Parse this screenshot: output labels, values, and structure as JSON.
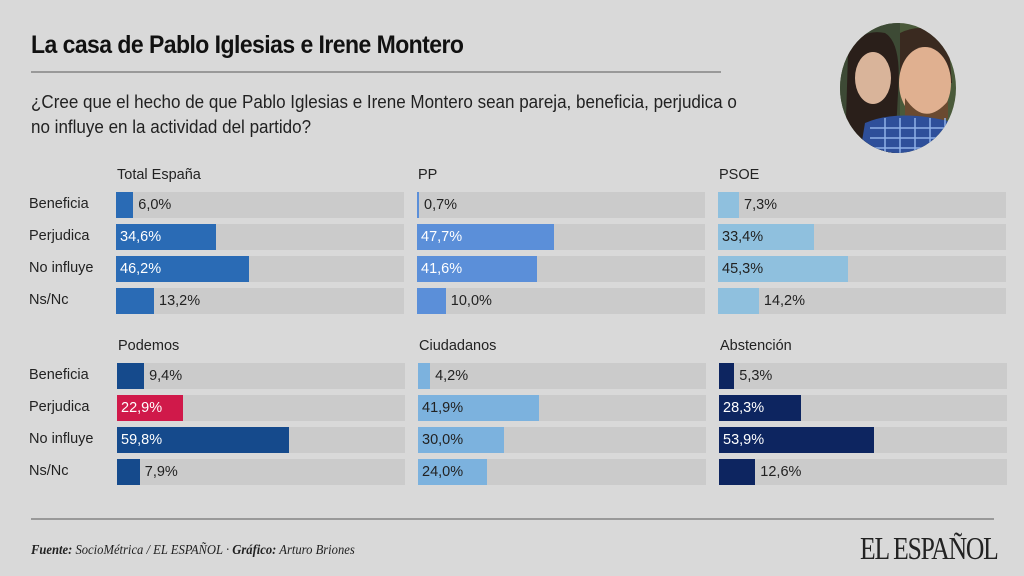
{
  "header": {
    "title": "La casa de Pablo Iglesias e Irene Montero",
    "question": "¿Cree que el hecho de que Pablo Iglesias e Irene Montero sean pareja, beneficia, perjudica o no influye en la actividad del partido?"
  },
  "chart_data": {
    "type": "bar",
    "orientation": "horizontal",
    "title": "La casa de Pablo Iglesias e Irene Montero",
    "categories": [
      "Beneficia",
      "Perjudica",
      "No influye",
      "Ns/Nc"
    ],
    "xlim": [
      0,
      100
    ],
    "unit": "%",
    "panels": [
      {
        "name": "Total España",
        "color": "#2a6bb5",
        "values": [
          6.0,
          34.6,
          46.2,
          13.2
        ],
        "labels": [
          "6,0%",
          "34,6%",
          "46,2%",
          "13,2%"
        ],
        "colors": [
          "#2a6bb5",
          "#2a6bb5",
          "#2a6bb5",
          "#2a6bb5"
        ],
        "label_colors": [
          "#222222",
          "#ffffff",
          "#ffffff",
          "#222222"
        ]
      },
      {
        "name": "PP",
        "color": "#5b8fd9",
        "values": [
          0.7,
          47.7,
          41.6,
          10.0
        ],
        "labels": [
          "0,7%",
          "47,7%",
          "41,6%",
          "10,0%"
        ],
        "colors": [
          "#5b8fd9",
          "#5b8fd9",
          "#5b8fd9",
          "#5b8fd9"
        ],
        "label_colors": [
          "#222222",
          "#ffffff",
          "#ffffff",
          "#222222"
        ]
      },
      {
        "name": "PSOE",
        "color": "#8fc0de",
        "values": [
          7.3,
          33.4,
          45.3,
          14.2
        ],
        "labels": [
          "7,3%",
          "33,4%",
          "45,3%",
          "14,2%"
        ],
        "colors": [
          "#8fc0de",
          "#8fc0de",
          "#8fc0de",
          "#8fc0de"
        ],
        "label_colors": [
          "#222222",
          "#222222",
          "#222222",
          "#222222"
        ]
      },
      {
        "name": "Podemos",
        "color": "#154a8c",
        "values": [
          9.4,
          22.9,
          59.8,
          7.9
        ],
        "labels": [
          "9,4%",
          "22,9%",
          "59,8%",
          "7,9%"
        ],
        "colors": [
          "#154a8c",
          "#d0194a",
          "#154a8c",
          "#154a8c"
        ],
        "label_colors": [
          "#222222",
          "#ffffff",
          "#ffffff",
          "#222222"
        ]
      },
      {
        "name": "Ciudadanos",
        "color": "#7cb2de",
        "values": [
          4.2,
          41.9,
          30.0,
          24.0
        ],
        "labels": [
          "4,2%",
          "41,9%",
          "30,0%",
          "24,0%"
        ],
        "colors": [
          "#7cb2de",
          "#7cb2de",
          "#7cb2de",
          "#7cb2de"
        ],
        "label_colors": [
          "#222222",
          "#222222",
          "#222222",
          "#222222"
        ]
      },
      {
        "name": "Abstención",
        "color": "#0d2560",
        "values": [
          5.3,
          28.3,
          53.9,
          12.6
        ],
        "labels": [
          "5,3%",
          "28,3%",
          "53,9%",
          "12,6%"
        ],
        "colors": [
          "#0d2560",
          "#0d2560",
          "#0d2560",
          "#0d2560"
        ],
        "label_colors": [
          "#222222",
          "#ffffff",
          "#ffffff",
          "#222222"
        ]
      }
    ]
  },
  "row_labels": [
    "Beneficia",
    "Perjudica",
    "No influye",
    "Ns/Nc"
  ],
  "footer": {
    "source_label": "Fuente:",
    "source_value": " SocioMétrica / EL ESPAÑOL  · ",
    "graphic_label": "Gráfico:",
    "graphic_value": " Arturo Briones",
    "logo": "EL ESPAÑOL"
  },
  "colors": {
    "background": "#d9d9d9",
    "track": "#cbcbcb",
    "rule": "#999999"
  }
}
